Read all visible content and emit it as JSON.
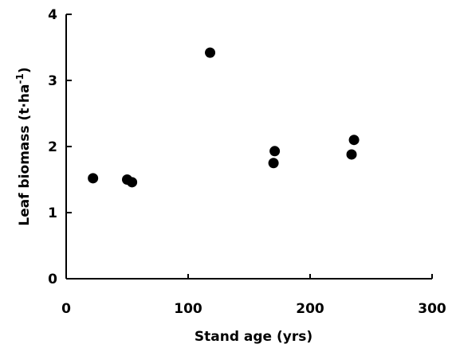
{
  "chart_data": {
    "type": "scatter",
    "xlabel": "Stand age (yrs)",
    "ylabel_main": "Leaf biomass (t·ha",
    "ylabel_sup": "-1",
    "ylabel_close": ")",
    "xlim": [
      0,
      300
    ],
    "ylim": [
      0,
      4
    ],
    "xticks": [
      0,
      100,
      200,
      300
    ],
    "yticks": [
      0,
      1,
      2,
      3,
      4
    ],
    "grid": false,
    "points": [
      {
        "x": 22,
        "y": 1.52
      },
      {
        "x": 50,
        "y": 1.5
      },
      {
        "x": 54,
        "y": 1.46
      },
      {
        "x": 118,
        "y": 3.42
      },
      {
        "x": 170,
        "y": 1.75
      },
      {
        "x": 171,
        "y": 1.93
      },
      {
        "x": 234,
        "y": 1.88
      },
      {
        "x": 236,
        "y": 2.1
      }
    ],
    "marker_color": "#000000"
  }
}
